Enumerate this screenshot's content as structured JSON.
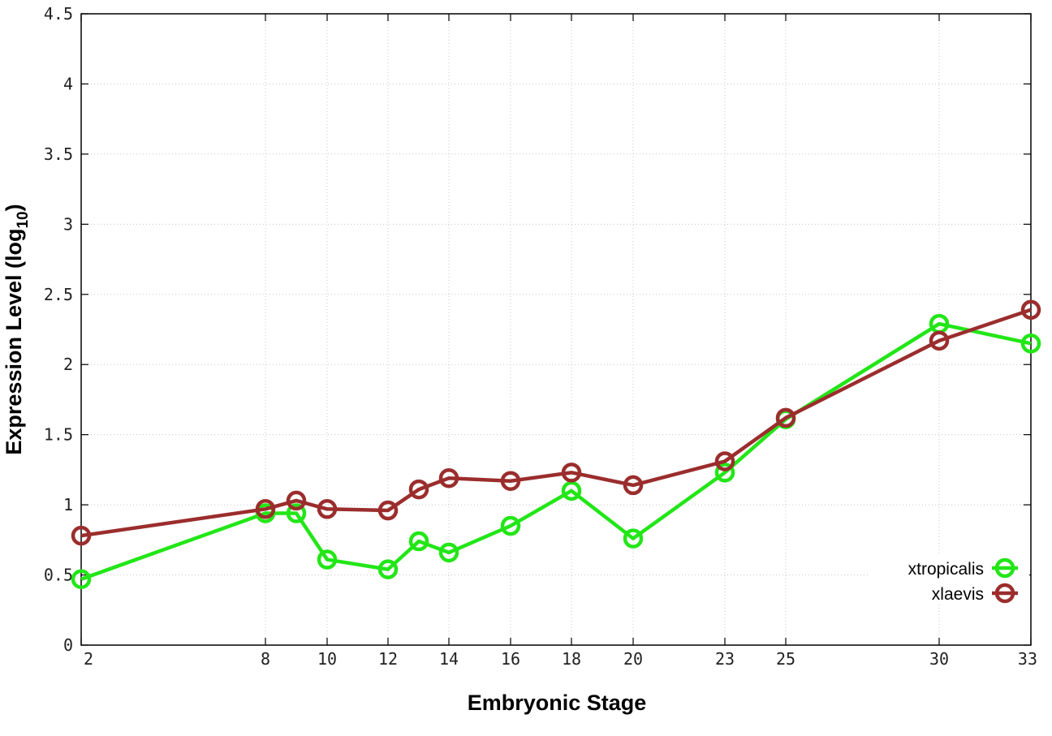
{
  "chart_data": {
    "type": "line",
    "title": "",
    "xlabel": "Embryonic Stage",
    "ylabel": "Expression Level (log10)",
    "ylabel_parts": {
      "main": "Expression Level (log",
      "sub": "10",
      "close": ")"
    },
    "x": [
      2,
      8,
      9,
      10,
      12,
      13,
      14,
      16,
      18,
      20,
      23,
      25,
      30,
      33
    ],
    "x_tick_values": [
      2,
      8,
      10,
      12,
      14,
      16,
      18,
      20,
      23,
      25,
      30,
      33
    ],
    "x_tick_labels": [
      "2",
      "8",
      "10",
      "12",
      "14",
      "16",
      "18",
      "20",
      "23",
      "25",
      "30",
      "33"
    ],
    "xlim": [
      2,
      33
    ],
    "ylim": [
      0,
      4.5
    ],
    "y_tick_values": [
      0,
      0.5,
      1,
      1.5,
      2,
      2.5,
      3,
      3.5,
      4,
      4.5
    ],
    "y_tick_labels": [
      "0",
      "0.5",
      "1",
      "1.5",
      "2",
      "2.5",
      "3",
      "3.5",
      "4",
      "4.5"
    ],
    "grid": true,
    "legend_position": "bottom-right",
    "series": [
      {
        "name": "xtropicalis",
        "color": "#22e617",
        "values": [
          0.47,
          0.94,
          0.94,
          0.61,
          0.54,
          0.74,
          0.66,
          0.85,
          1.1,
          0.76,
          1.23,
          1.61,
          2.29,
          2.15
        ]
      },
      {
        "name": "xlaevis",
        "color": "#9b2d2d",
        "values": [
          0.78,
          0.97,
          1.03,
          0.97,
          0.96,
          1.11,
          1.19,
          1.17,
          1.23,
          1.14,
          1.31,
          1.62,
          2.17,
          2.39
        ]
      }
    ]
  }
}
